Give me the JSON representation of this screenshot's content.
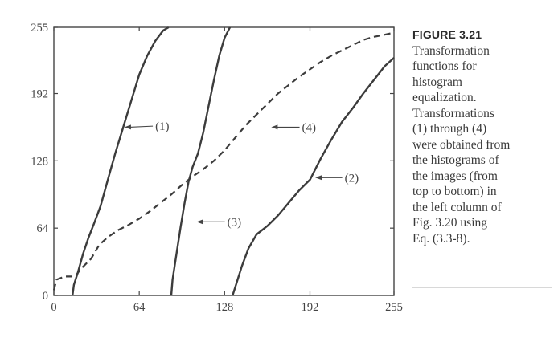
{
  "caption": {
    "figure_label": "FIGURE 3.21",
    "lines": [
      "Transformation",
      "functions for",
      "histogram",
      "equalization.",
      "Transformations",
      "(1) through (4)",
      "were obtained from",
      "the histograms of",
      "the images (from",
      "top to bottom) in",
      "the left column of",
      "Fig. 3.20 using",
      "Eq. (3.3-8)."
    ]
  },
  "chart_data": {
    "type": "line",
    "title": "",
    "xlabel": "",
    "ylabel": "",
    "xlim": [
      0,
      255
    ],
    "ylim": [
      0,
      255
    ],
    "x_ticks": [
      "0",
      "64",
      "128",
      "192",
      "255"
    ],
    "y_ticks": [
      "0",
      "64",
      "128",
      "192",
      "255"
    ],
    "grid": false,
    "series": [
      {
        "name": "(1)",
        "style": "solid",
        "points": [
          [
            14,
            0
          ],
          [
            15,
            10
          ],
          [
            18,
            22
          ],
          [
            22,
            40
          ],
          [
            26,
            55
          ],
          [
            30,
            68
          ],
          [
            35,
            85
          ],
          [
            40,
            108
          ],
          [
            46,
            135
          ],
          [
            52,
            160
          ],
          [
            58,
            185
          ],
          [
            64,
            210
          ],
          [
            70,
            228
          ],
          [
            76,
            242
          ],
          [
            82,
            252
          ],
          [
            86,
            255
          ]
        ]
      },
      {
        "name": "(2)",
        "style": "solid",
        "points": [
          [
            134,
            0
          ],
          [
            137,
            12
          ],
          [
            141,
            28
          ],
          [
            146,
            45
          ],
          [
            152,
            58
          ],
          [
            160,
            66
          ],
          [
            168,
            76
          ],
          [
            176,
            88
          ],
          [
            184,
            100
          ],
          [
            192,
            110
          ],
          [
            200,
            130
          ],
          [
            208,
            148
          ],
          [
            216,
            165
          ],
          [
            224,
            178
          ],
          [
            232,
            192
          ],
          [
            240,
            205
          ],
          [
            248,
            218
          ],
          [
            255,
            226
          ]
        ]
      },
      {
        "name": "(3)",
        "style": "solid",
        "points": [
          [
            88,
            0
          ],
          [
            89,
            15
          ],
          [
            92,
            40
          ],
          [
            95,
            65
          ],
          [
            98,
            88
          ],
          [
            101,
            108
          ],
          [
            104,
            122
          ],
          [
            108,
            135
          ],
          [
            112,
            155
          ],
          [
            116,
            180
          ],
          [
            120,
            205
          ],
          [
            124,
            228
          ],
          [
            128,
            245
          ],
          [
            132,
            255
          ]
        ]
      },
      {
        "name": "(4)",
        "style": "dashed",
        "points": [
          [
            0,
            5
          ],
          [
            2,
            15
          ],
          [
            8,
            18
          ],
          [
            16,
            18
          ],
          [
            20,
            25
          ],
          [
            28,
            35
          ],
          [
            34,
            48
          ],
          [
            40,
            55
          ],
          [
            48,
            62
          ],
          [
            56,
            67
          ],
          [
            64,
            73
          ],
          [
            72,
            80
          ],
          [
            80,
            88
          ],
          [
            88,
            96
          ],
          [
            96,
            105
          ],
          [
            104,
            113
          ],
          [
            112,
            120
          ],
          [
            120,
            128
          ],
          [
            128,
            138
          ],
          [
            136,
            150
          ],
          [
            144,
            162
          ],
          [
            152,
            172
          ],
          [
            160,
            182
          ],
          [
            168,
            192
          ],
          [
            176,
            200
          ],
          [
            184,
            208
          ],
          [
            192,
            215
          ],
          [
            200,
            222
          ],
          [
            208,
            228
          ],
          [
            216,
            233
          ],
          [
            224,
            238
          ],
          [
            232,
            243
          ],
          [
            240,
            246
          ],
          [
            248,
            248
          ],
          [
            255,
            250
          ]
        ]
      }
    ],
    "annotations": [
      {
        "text": "(1)",
        "target": [
          53,
          160
        ],
        "label_at": [
          76,
          161
        ]
      },
      {
        "text": "(2)",
        "target": [
          196,
          112
        ],
        "label_at": [
          218,
          112
        ]
      },
      {
        "text": "(3)",
        "target": [
          107,
          70
        ],
        "label_at": [
          130,
          70
        ]
      },
      {
        "text": "(4)",
        "target": [
          163,
          160
        ],
        "label_at": [
          186,
          160
        ]
      }
    ]
  }
}
